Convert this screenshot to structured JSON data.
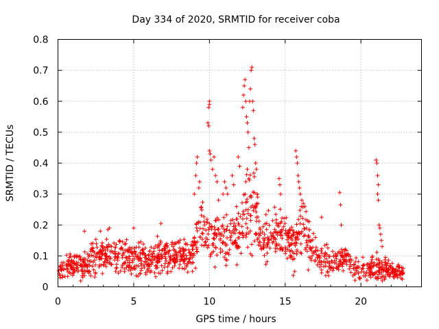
{
  "chart_data": {
    "type": "scatter",
    "title": "Day 334 of 2020, SRMTID for receiver coba",
    "xlabel": "GPS time / hours",
    "ylabel": "SRMTID / TECUs",
    "xlim": [
      0,
      24
    ],
    "ylim": [
      0,
      0.8
    ],
    "xticks": [
      "0",
      "5",
      "10",
      "15",
      "20"
    ],
    "yticks": [
      "0",
      "0.1",
      "0.2",
      "0.3",
      "0.4",
      "0.5",
      "0.6",
      "0.7",
      "0.8"
    ],
    "grid": true,
    "marker": "+",
    "color": "#ee0000",
    "x_coverage": [
      0,
      22.8
    ],
    "envelope": [
      {
        "x": 0.0,
        "y": 0.05,
        "spread": 0.025
      },
      {
        "x": 1.0,
        "y": 0.07,
        "spread": 0.03
      },
      {
        "x": 2.0,
        "y": 0.08,
        "spread": 0.035
      },
      {
        "x": 3.0,
        "y": 0.1,
        "spread": 0.04
      },
      {
        "x": 4.0,
        "y": 0.1,
        "spread": 0.04
      },
      {
        "x": 5.0,
        "y": 0.09,
        "spread": 0.035
      },
      {
        "x": 6.0,
        "y": 0.09,
        "spread": 0.035
      },
      {
        "x": 7.0,
        "y": 0.1,
        "spread": 0.035
      },
      {
        "x": 8.0,
        "y": 0.1,
        "spread": 0.04
      },
      {
        "x": 8.9,
        "y": 0.1,
        "spread": 0.04
      },
      {
        "x": 9.3,
        "y": 0.2,
        "spread": 0.07
      },
      {
        "x": 10.0,
        "y": 0.17,
        "spread": 0.06
      },
      {
        "x": 11.0,
        "y": 0.15,
        "spread": 0.06
      },
      {
        "x": 12.0,
        "y": 0.18,
        "spread": 0.07
      },
      {
        "x": 12.7,
        "y": 0.27,
        "spread": 0.1
      },
      {
        "x": 13.5,
        "y": 0.15,
        "spread": 0.05
      },
      {
        "x": 14.5,
        "y": 0.18,
        "spread": 0.05
      },
      {
        "x": 15.5,
        "y": 0.13,
        "spread": 0.05
      },
      {
        "x": 16.0,
        "y": 0.2,
        "spread": 0.06
      },
      {
        "x": 17.0,
        "y": 0.1,
        "spread": 0.04
      },
      {
        "x": 18.0,
        "y": 0.08,
        "spread": 0.03
      },
      {
        "x": 19.0,
        "y": 0.09,
        "spread": 0.035
      },
      {
        "x": 20.0,
        "y": 0.05,
        "spread": 0.025
      },
      {
        "x": 21.0,
        "y": 0.06,
        "spread": 0.03
      },
      {
        "x": 22.0,
        "y": 0.05,
        "spread": 0.02
      },
      {
        "x": 22.8,
        "y": 0.05,
        "spread": 0.02
      }
    ],
    "outliers": [
      {
        "x": 1.75,
        "y": 0.18
      },
      {
        "x": 2.8,
        "y": 0.18
      },
      {
        "x": 3.3,
        "y": 0.185
      },
      {
        "x": 3.4,
        "y": 0.19
      },
      {
        "x": 5.0,
        "y": 0.19
      },
      {
        "x": 6.8,
        "y": 0.205
      },
      {
        "x": 9.0,
        "y": 0.3
      },
      {
        "x": 9.1,
        "y": 0.36
      },
      {
        "x": 9.15,
        "y": 0.4
      },
      {
        "x": 9.2,
        "y": 0.42
      },
      {
        "x": 9.3,
        "y": 0.32
      },
      {
        "x": 9.35,
        "y": 0.34
      },
      {
        "x": 9.9,
        "y": 0.53
      },
      {
        "x": 9.95,
        "y": 0.52
      },
      {
        "x": 9.95,
        "y": 0.58
      },
      {
        "x": 10.0,
        "y": 0.59
      },
      {
        "x": 10.0,
        "y": 0.6
      },
      {
        "x": 10.0,
        "y": 0.44
      },
      {
        "x": 10.05,
        "y": 0.43
      },
      {
        "x": 10.1,
        "y": 0.41
      },
      {
        "x": 10.2,
        "y": 0.38
      },
      {
        "x": 10.3,
        "y": 0.42
      },
      {
        "x": 10.4,
        "y": 0.36
      },
      {
        "x": 10.5,
        "y": 0.34
      },
      {
        "x": 10.6,
        "y": 0.28
      },
      {
        "x": 10.9,
        "y": 0.3
      },
      {
        "x": 11.0,
        "y": 0.34
      },
      {
        "x": 11.1,
        "y": 0.32
      },
      {
        "x": 11.2,
        "y": 0.3
      },
      {
        "x": 11.5,
        "y": 0.36
      },
      {
        "x": 11.6,
        "y": 0.33
      },
      {
        "x": 11.9,
        "y": 0.42
      },
      {
        "x": 12.0,
        "y": 0.39
      },
      {
        "x": 12.2,
        "y": 0.58
      },
      {
        "x": 12.25,
        "y": 0.62
      },
      {
        "x": 12.3,
        "y": 0.65
      },
      {
        "x": 12.35,
        "y": 0.67
      },
      {
        "x": 12.4,
        "y": 0.6
      },
      {
        "x": 12.45,
        "y": 0.55
      },
      {
        "x": 12.5,
        "y": 0.53
      },
      {
        "x": 12.55,
        "y": 0.5
      },
      {
        "x": 12.6,
        "y": 0.45
      },
      {
        "x": 12.65,
        "y": 0.6
      },
      {
        "x": 12.7,
        "y": 0.64
      },
      {
        "x": 12.75,
        "y": 0.7
      },
      {
        "x": 12.8,
        "y": 0.71
      },
      {
        "x": 12.85,
        "y": 0.6
      },
      {
        "x": 12.9,
        "y": 0.57
      },
      {
        "x": 12.95,
        "y": 0.48
      },
      {
        "x": 13.0,
        "y": 0.46
      },
      {
        "x": 13.05,
        "y": 0.4
      },
      {
        "x": 13.1,
        "y": 0.38
      },
      {
        "x": 13.15,
        "y": 0.3
      },
      {
        "x": 13.2,
        "y": 0.27
      },
      {
        "x": 12.5,
        "y": 0.38
      },
      {
        "x": 12.6,
        "y": 0.35
      },
      {
        "x": 12.4,
        "y": 0.34
      },
      {
        "x": 14.6,
        "y": 0.35
      },
      {
        "x": 14.65,
        "y": 0.33
      },
      {
        "x": 14.7,
        "y": 0.3
      },
      {
        "x": 15.7,
        "y": 0.44
      },
      {
        "x": 15.75,
        "y": 0.42
      },
      {
        "x": 15.8,
        "y": 0.4
      },
      {
        "x": 15.85,
        "y": 0.36
      },
      {
        "x": 15.9,
        "y": 0.34
      },
      {
        "x": 15.95,
        "y": 0.32
      },
      {
        "x": 16.0,
        "y": 0.3
      },
      {
        "x": 16.1,
        "y": 0.28
      },
      {
        "x": 16.2,
        "y": 0.27
      },
      {
        "x": 16.3,
        "y": 0.26
      },
      {
        "x": 17.4,
        "y": 0.225
      },
      {
        "x": 18.6,
        "y": 0.305
      },
      {
        "x": 18.65,
        "y": 0.265
      },
      {
        "x": 18.7,
        "y": 0.2
      },
      {
        "x": 21.0,
        "y": 0.41
      },
      {
        "x": 21.05,
        "y": 0.4
      },
      {
        "x": 21.1,
        "y": 0.36
      },
      {
        "x": 21.15,
        "y": 0.33
      },
      {
        "x": 21.1,
        "y": 0.3
      },
      {
        "x": 21.15,
        "y": 0.28
      },
      {
        "x": 21.2,
        "y": 0.2
      },
      {
        "x": 21.25,
        "y": 0.19
      },
      {
        "x": 21.3,
        "y": 0.17
      },
      {
        "x": 21.35,
        "y": 0.15
      },
      {
        "x": 21.4,
        "y": 0.13
      }
    ]
  }
}
